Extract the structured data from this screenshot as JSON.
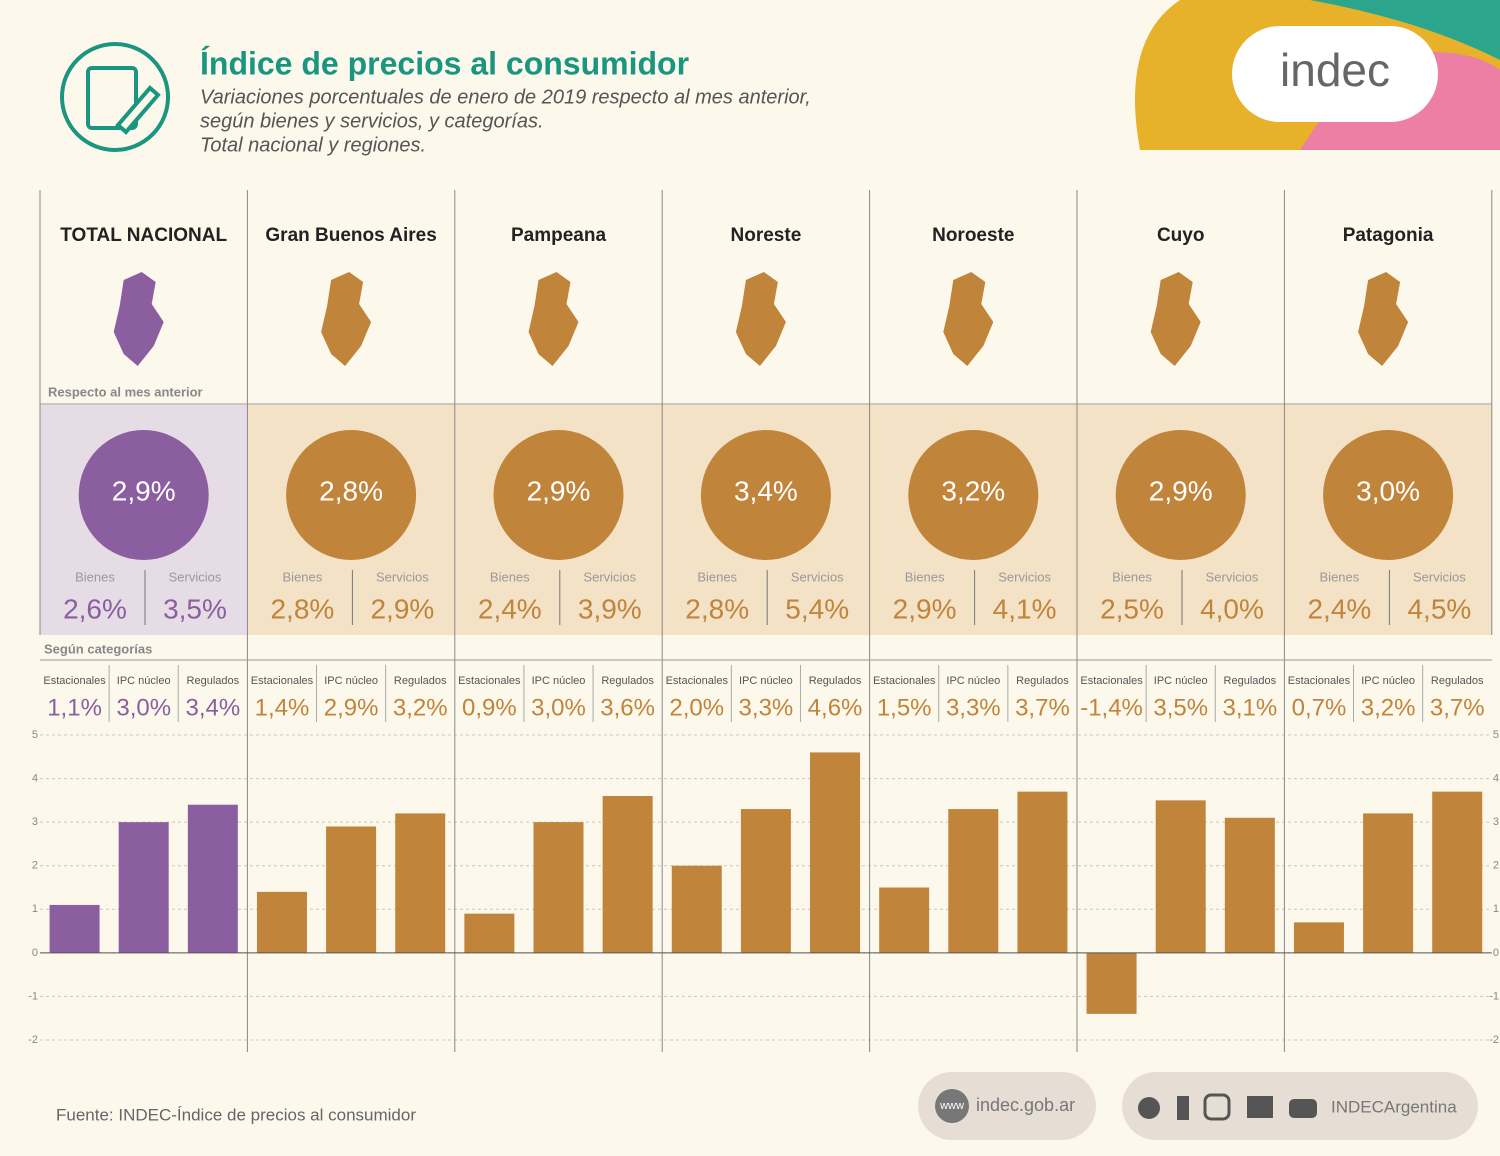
{
  "header": {
    "title": "Índice de precios al consumidor",
    "subtitle": [
      "Variaciones porcentuales de enero de 2019 respecto al mes anterior,",
      "según bienes y servicios, y categorías.",
      "Total nacional y regiones."
    ],
    "logo": "indec"
  },
  "summary": {
    "caption": "Respecto al mes anterior",
    "bienes_label": "Bienes",
    "servicios_label": "Servicios",
    "totals": [
      "2,9%",
      "2,8%",
      "2,9%",
      "3,4%",
      "3,2%",
      "2,9%",
      "3,0%"
    ],
    "bienes": [
      "2,6%",
      "2,8%",
      "2,4%",
      "2,8%",
      "2,9%",
      "2,5%",
      "2,4%"
    ],
    "servicios": [
      "3,5%",
      "2,9%",
      "3,9%",
      "5,4%",
      "4,1%",
      "4,0%",
      "4,5%"
    ]
  },
  "chart_data": {
    "type": "bar",
    "caption": "Según categorías",
    "categories": [
      "TOTAL NACIONAL",
      "Gran Buenos Aires",
      "Pampeana",
      "Noreste",
      "Noroeste",
      "Cuyo",
      "Patagonia"
    ],
    "category_colors": [
      "#8b5e9f",
      "#c0843a",
      "#c0843a",
      "#c0843a",
      "#c0843a",
      "#c0843a",
      "#c0843a"
    ],
    "series": [
      {
        "name": "Estacionales",
        "values": [
          1.1,
          1.4,
          0.9,
          2.0,
          1.5,
          -1.4,
          0.7
        ],
        "value_labels": [
          "1,1%",
          "1,4%",
          "0,9%",
          "2,0%",
          "1,5%",
          "-1,4%",
          "0,7%"
        ]
      },
      {
        "name": "IPC núcleo",
        "values": [
          3.0,
          2.9,
          3.0,
          3.3,
          3.3,
          3.5,
          3.2
        ],
        "value_labels": [
          "3,0%",
          "2,9%",
          "3,0%",
          "3,3%",
          "3,3%",
          "3,5%",
          "3,2%"
        ]
      },
      {
        "name": "Regulados",
        "values": [
          3.4,
          3.2,
          3.6,
          4.6,
          3.7,
          3.1,
          3.7
        ],
        "value_labels": [
          "3,4%",
          "3,2%",
          "3,6%",
          "4,6%",
          "3,7%",
          "3,1%",
          "3,7%"
        ]
      }
    ],
    "ylim": [
      -2,
      5
    ],
    "yticks": [
      -2,
      -1,
      0,
      1,
      2,
      3,
      4,
      5
    ],
    "grid": true
  },
  "footer": {
    "source": "Fuente: INDEC-Índice de precios al consumidor",
    "www": "www",
    "site": "indec.gob.ar",
    "social": "INDECArgentina"
  }
}
